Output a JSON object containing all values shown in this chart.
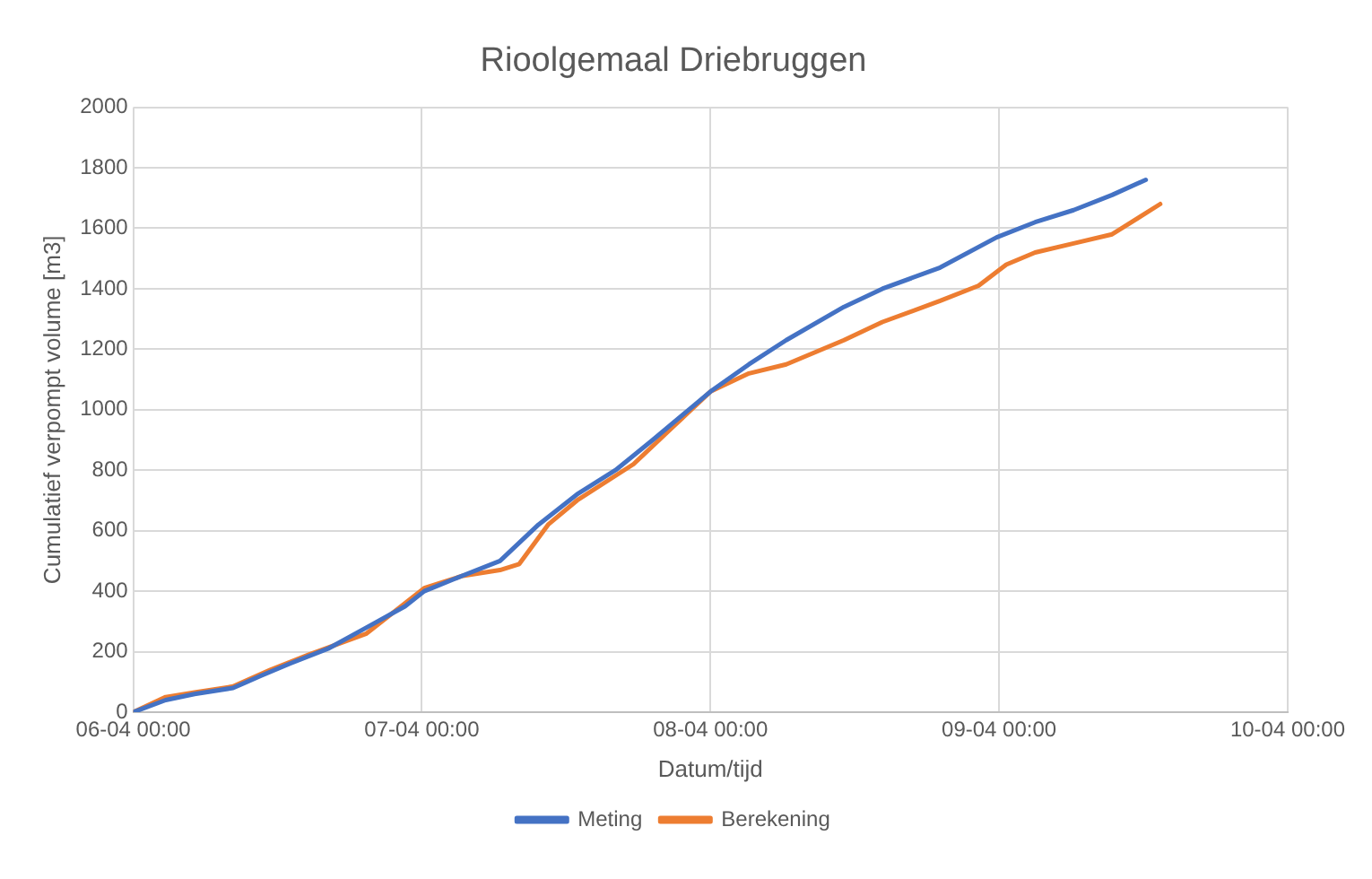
{
  "chart_data": {
    "type": "line",
    "title": "Rioolgemaal Driebruggen",
    "xlabel": "Datum/tijd",
    "ylabel": "Cumulatief verpompt volume [m3]",
    "xlim": [
      "--04-06T00:00",
      "--04-10T00:00"
    ],
    "xticks": [
      {
        "value": "--04-06T00:00",
        "label": "06-04 00:00"
      },
      {
        "value": "--04-07T00:00",
        "label": "07-04 00:00"
      },
      {
        "value": "--04-08T00:00",
        "label": "08-04 00:00"
      },
      {
        "value": "--04-09T00:00",
        "label": "09-04 00:00"
      },
      {
        "value": "--04-10T00:00",
        "label": "10-04 00:00"
      }
    ],
    "ylim": [
      0,
      2000
    ],
    "yticks": [
      0,
      200,
      400,
      600,
      800,
      1000,
      1200,
      1400,
      1600,
      1800,
      2000
    ],
    "grid": true,
    "legend": "bottom",
    "marker": "none",
    "line_style": "solid",
    "series": [
      {
        "name": "Meting",
        "color": "#4472c4",
        "x": [
          "--04-06T00:00",
          "--04-06T02:42",
          "--04-06T05:06",
          "--04-06T08:18",
          "--04-06T10:36",
          "--04-06T13:00",
          "--04-06T16:12",
          "--04-06T19:24",
          "--04-06T22:36",
          "--04-07T00:12",
          "--04-07T03:18",
          "--04-07T06:30",
          "--04-07T09:42",
          "--04-07T12:54",
          "--04-07T16:06",
          "--04-07T19:12",
          "--04-08T00:00",
          "--04-08T03:12",
          "--04-08T06:18",
          "--04-08T11:06",
          "--04-08T14:18",
          "--04-08T19:06",
          "--04-08T23:48",
          "--04-09T03:00",
          "--04-09T06:12",
          "--04-09T09:24",
          "--04-09T12:12"
        ],
        "values": [
          0,
          40,
          60,
          80,
          120,
          160,
          210,
          280,
          350,
          400,
          450,
          500,
          620,
          720,
          800,
          900,
          1060,
          1150,
          1230,
          1340,
          1400,
          1470,
          1570,
          1620,
          1660,
          1710,
          1760
        ]
      },
      {
        "name": "Berekening",
        "color": "#ed7d31",
        "x": [
          "--04-06T00:00",
          "--04-06T02:42",
          "--04-06T05:06",
          "--04-06T08:18",
          "--04-06T11:24",
          "--04-06T14:36",
          "--04-06T19:24",
          "--04-07T00:12",
          "--04-07T03:18",
          "--04-07T06:30",
          "--04-07T08:06",
          "--04-07T10:30",
          "--04-07T12:54",
          "--04-07T17:36",
          "--04-07T20:48",
          "--04-08T00:00",
          "--04-08T03:12",
          "--04-08T06:18",
          "--04-08T11:06",
          "--04-08T14:18",
          "--04-08T19:06",
          "--04-08T22:18",
          "--04-09T00:36",
          "--04-09T03:00",
          "--04-09T06:12",
          "--04-09T09:24",
          "--04-09T13:24"
        ],
        "values": [
          0,
          50,
          65,
          85,
          140,
          190,
          260,
          410,
          450,
          470,
          490,
          620,
          700,
          820,
          940,
          1060,
          1120,
          1150,
          1230,
          1290,
          1360,
          1410,
          1480,
          1520,
          1550,
          1580,
          1680
        ]
      }
    ]
  }
}
